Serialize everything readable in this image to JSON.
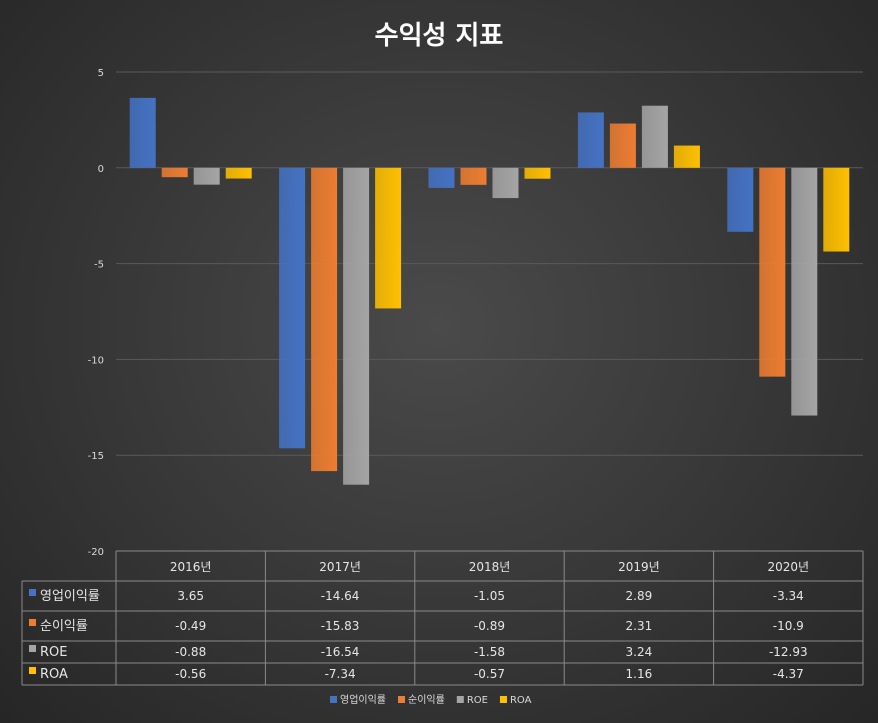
{
  "chart_data": {
    "type": "bar",
    "title": "수익성 지표",
    "xlabel": "",
    "ylabel": "",
    "categories": [
      "2016년",
      "2017년",
      "2018년",
      "2019년",
      "2020년"
    ],
    "ylim": [
      -20,
      5
    ],
    "yticks": [
      "5",
      "0",
      "-5",
      "-10",
      "-15",
      "-20"
    ],
    "series": [
      {
        "name": "영업이익률",
        "color": "#4472c4",
        "values": [
          3.65,
          -14.64,
          -1.05,
          2.89,
          -3.34
        ],
        "labels": [
          "3.65",
          "-14.64",
          "-1.05",
          "2.89",
          "-3.34"
        ]
      },
      {
        "name": "순이익률",
        "color": "#ed7d31",
        "values": [
          -0.49,
          -15.83,
          -0.89,
          2.31,
          -10.9
        ],
        "labels": [
          "-0.49",
          "-15.83",
          "-0.89",
          "2.31",
          "-10.9"
        ]
      },
      {
        "name": "ROE",
        "color": "#a5a5a5",
        "values": [
          -0.88,
          -16.54,
          -1.58,
          3.24,
          -12.93
        ],
        "labels": [
          "-0.88",
          "-16.54",
          "-1.58",
          "3.24",
          "-12.93"
        ]
      },
      {
        "name": "ROA",
        "color": "#ffc000",
        "values": [
          -0.56,
          -7.34,
          -0.57,
          1.16,
          -4.37
        ],
        "labels": [
          "-0.56",
          "-7.34",
          "-0.57",
          "1.16",
          "-4.37"
        ]
      }
    ],
    "grid": true,
    "legend": "bottom-center",
    "data_table": true
  }
}
